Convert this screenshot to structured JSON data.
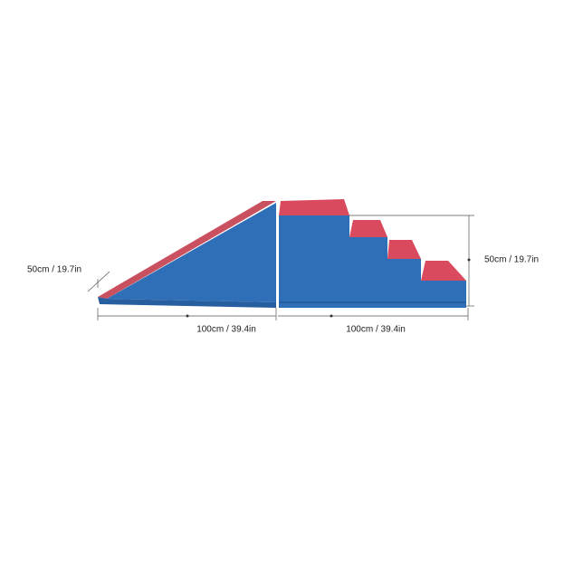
{
  "dimensions": {
    "depth": "50cm / 19.7in",
    "ramp_length": "100cm / 39.4in",
    "stairs_length": "100cm / 39.4in",
    "height": "50cm / 19.7in"
  }
}
